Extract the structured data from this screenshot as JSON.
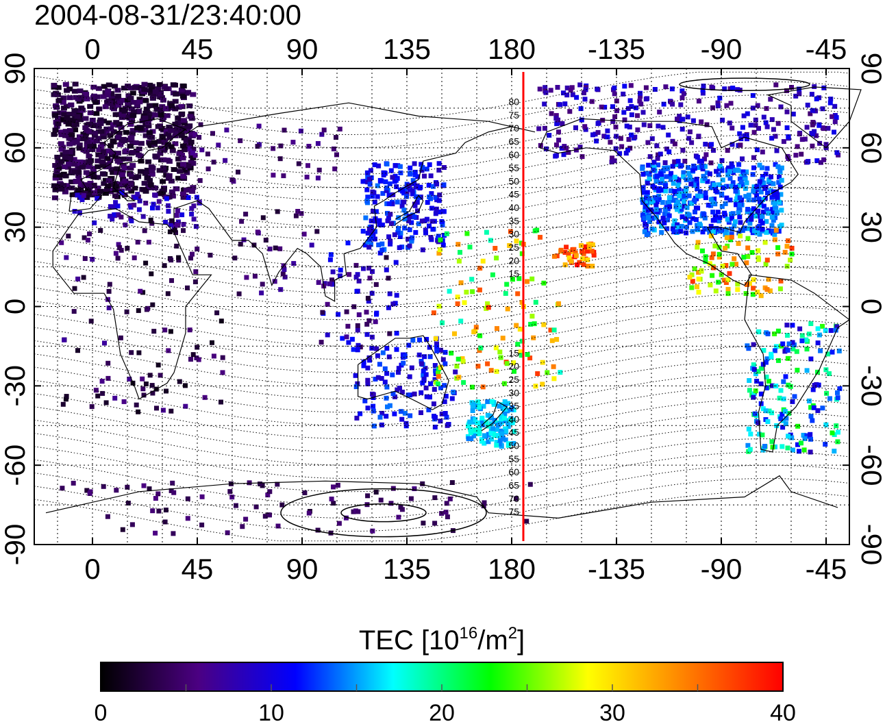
{
  "timestamp": "2004-08-31/23:40:00",
  "axes": {
    "lon_ticks_top": [
      "0",
      "45",
      "90",
      "135",
      "180",
      "-135",
      "-90",
      "-45"
    ],
    "lon_ticks_bottom": [
      "0",
      "45",
      "90",
      "135",
      "180",
      "-135",
      "-90",
      "-45"
    ],
    "lat_ticks_left": [
      "90",
      "60",
      "30",
      "0",
      "-30",
      "-60",
      "-90"
    ],
    "lat_ticks_right": [
      "90",
      "60",
      "30",
      "0",
      "-30",
      "-60",
      "-90"
    ],
    "lon_range": [
      -25,
      325
    ],
    "lat_range": [
      -90,
      90
    ]
  },
  "meridian_marker": {
    "longitude": 185,
    "color": "#ff0000",
    "mlat_labels": [
      "80",
      "75",
      "70",
      "65",
      "60",
      "55",
      "50",
      "45",
      "40",
      "35",
      "30",
      "25",
      "20",
      "15",
      "15",
      "20",
      "25",
      "30",
      "35",
      "40",
      "45",
      "50",
      "55",
      "60",
      "65",
      "70",
      "75"
    ]
  },
  "colorbar": {
    "title_main": "TEC  [10",
    "title_exp1": "16",
    "title_mid": "/m",
    "title_exp2": "2",
    "title_end": "]",
    "min": 0,
    "max": 40,
    "tick_labels": [
      "0",
      "10",
      "20",
      "30",
      "40"
    ],
    "colors": [
      "#000000",
      "#4b0082",
      "#0000ff",
      "#00ffff",
      "#00ff00",
      "#ffff00",
      "#ff8000",
      "#ff0000"
    ]
  },
  "tec_clusters": [
    {
      "name": "europe",
      "lon": [
        -18,
        42
      ],
      "lat": [
        42,
        85
      ],
      "tec": [
        1,
        5
      ],
      "n": 700
    },
    {
      "name": "europe-south",
      "lon": [
        -10,
        45
      ],
      "lat": [
        30,
        44
      ],
      "tec": [
        6,
        11
      ],
      "n": 60
    },
    {
      "name": "russia",
      "lon": [
        40,
        110
      ],
      "lat": [
        48,
        70
      ],
      "tec": [
        3,
        7
      ],
      "n": 45
    },
    {
      "name": "africa",
      "lon": [
        -15,
        55
      ],
      "lat": [
        -40,
        35
      ],
      "tec": [
        1,
        7
      ],
      "n": 120
    },
    {
      "name": "india",
      "lon": [
        60,
        100
      ],
      "lat": [
        5,
        40
      ],
      "tec": [
        2,
        8
      ],
      "n": 35
    },
    {
      "name": "se-asia",
      "lon": [
        95,
        130
      ],
      "lat": [
        -15,
        25
      ],
      "tec": [
        2,
        12
      ],
      "n": 60
    },
    {
      "name": "east-asia",
      "lon": [
        115,
        150
      ],
      "lat": [
        22,
        55
      ],
      "tec": [
        8,
        14
      ],
      "n": 220
    },
    {
      "name": "australia",
      "lon": [
        110,
        155
      ],
      "lat": [
        -45,
        -10
      ],
      "tec": [
        8,
        14
      ],
      "n": 130
    },
    {
      "name": "new-zealand",
      "lon": [
        160,
        180
      ],
      "lat": [
        -52,
        -35
      ],
      "tec": [
        14,
        18
      ],
      "n": 120
    },
    {
      "name": "pacific-equator",
      "lon": [
        145,
        200
      ],
      "lat": [
        -30,
        30
      ],
      "tec": [
        18,
        38
      ],
      "n": 120
    },
    {
      "name": "hawaii",
      "lon": [
        200,
        215
      ],
      "lat": [
        16,
        25
      ],
      "tec": [
        30,
        40
      ],
      "n": 40
    },
    {
      "name": "north-america",
      "lon": [
        235,
        295
      ],
      "lat": [
        28,
        55
      ],
      "tec": [
        10,
        16
      ],
      "n": 480
    },
    {
      "name": "canada-alaska",
      "lon": [
        190,
        320
      ],
      "lat": [
        55,
        85
      ],
      "tec": [
        5,
        11
      ],
      "n": 300
    },
    {
      "name": "central-america",
      "lon": [
        255,
        300
      ],
      "lat": [
        5,
        30
      ],
      "tec": [
        22,
        38
      ],
      "n": 90
    },
    {
      "name": "south-america",
      "lon": [
        280,
        320
      ],
      "lat": [
        -55,
        -5
      ],
      "tec": [
        8,
        24
      ],
      "n": 170
    },
    {
      "name": "antarctic",
      "lon": [
        -15,
        190
      ],
      "lat": [
        -85,
        -65
      ],
      "tec": [
        2,
        6
      ],
      "n": 90
    }
  ]
}
